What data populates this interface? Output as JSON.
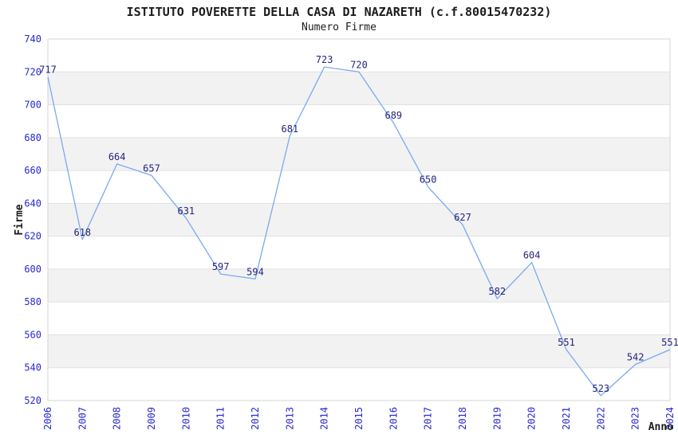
{
  "chart_data": {
    "type": "line",
    "title": "ISTITUTO POVERETTE DELLA CASA DI NAZARETH (c.f.80015470232)",
    "subtitle": "Numero Firme",
    "xlabel": "Anno",
    "ylabel": "Firme",
    "categories": [
      "2006",
      "2007",
      "2008",
      "2009",
      "2010",
      "2011",
      "2012",
      "2013",
      "2014",
      "2015",
      "2016",
      "2017",
      "2018",
      "2019",
      "2020",
      "2021",
      "2022",
      "2023",
      "2024"
    ],
    "values": [
      717,
      618,
      664,
      657,
      631,
      597,
      594,
      681,
      723,
      720,
      689,
      650,
      627,
      582,
      604,
      551,
      523,
      542,
      551
    ],
    "ylim": [
      520,
      740
    ],
    "ytick_step": 20,
    "legend": "none",
    "grid": "horizontal-gridlines-with-alternating-bands",
    "colors": {
      "line": "#79aaf0",
      "tick_label": "#2828cf",
      "data_label": "#24247e",
      "band": "#f2f2f2",
      "gridline": "#e1e1e1",
      "plot_border": "#d6d6d6",
      "text": "#1c1c1c"
    }
  }
}
